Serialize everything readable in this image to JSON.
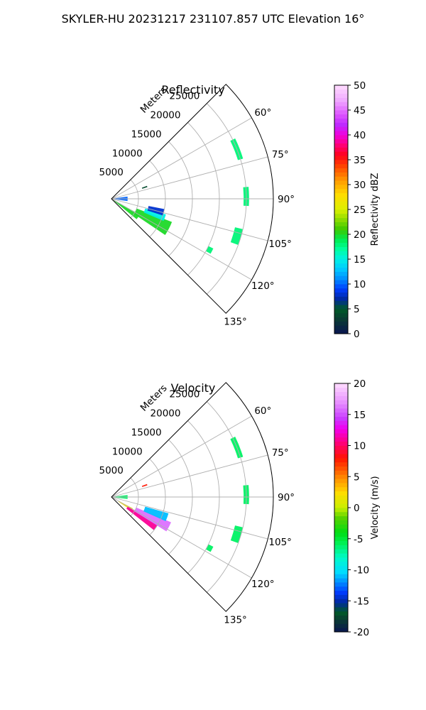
{
  "figure_title": "SKYLER-HU  20231217  231107.857 UTC Elevation 16°",
  "chart_data": [
    {
      "type": "heatmap",
      "title": "Reflectivity",
      "projection": "polar-sector",
      "theta_range_deg": [
        45,
        135
      ],
      "theta_ticks": [
        "60°",
        "75°",
        "90°",
        "105°",
        "120°",
        "135°"
      ],
      "r_range_m": [
        0,
        30000
      ],
      "r_ticks": [
        "5000",
        "10000",
        "15000",
        "20000",
        "25000"
      ],
      "r_axis_label": "Meters",
      "grid": true,
      "colorbar": {
        "label": "Reflectivity dBZ",
        "min": 0,
        "max": 50,
        "ticks": [
          "0",
          "5",
          "10",
          "15",
          "20",
          "25",
          "30",
          "35",
          "40",
          "45",
          "50"
        ]
      },
      "echoes": [
        {
          "az_from": 119,
          "az_to": 129,
          "r_from": 500,
          "r_to": 6000,
          "value": 20
        },
        {
          "az_from": 111,
          "az_to": 124,
          "r_from": 5000,
          "r_to": 12000,
          "value": 20
        },
        {
          "az_from": 106,
          "az_to": 113,
          "r_from": 6500,
          "r_to": 10500,
          "value": 15
        },
        {
          "az_from": 101,
          "az_to": 108,
          "r_from": 7000,
          "r_to": 10000,
          "value": 8
        },
        {
          "az_from": 82,
          "az_to": 98,
          "r_from": 500,
          "r_to": 3000,
          "value": 10
        },
        {
          "az_from": 70,
          "az_to": 72,
          "r_from": 6000,
          "r_to": 7000,
          "value": 4
        },
        {
          "az_from": 64,
          "az_to": 73,
          "r_from": 24500,
          "r_to": 25500,
          "value": 18
        },
        {
          "az_from": 85,
          "az_to": 93,
          "r_from": 24500,
          "r_to": 25500,
          "value": 18
        },
        {
          "az_from": 103,
          "az_to": 110,
          "r_from": 23500,
          "r_to": 25000,
          "value": 18
        },
        {
          "az_from": 116,
          "az_to": 119,
          "r_from": 20000,
          "r_to": 21000,
          "value": 18
        }
      ]
    },
    {
      "type": "heatmap",
      "title": "Velocity",
      "projection": "polar-sector",
      "theta_range_deg": [
        45,
        135
      ],
      "theta_ticks": [
        "60°",
        "75°",
        "90°",
        "105°",
        "120°",
        "135°"
      ],
      "r_range_m": [
        0,
        30000
      ],
      "r_ticks": [
        "5000",
        "10000",
        "15000",
        "20000",
        "25000"
      ],
      "r_axis_label": "Meters",
      "grid": true,
      "colorbar": {
        "label": "Velocity (m/s)",
        "min": -20,
        "max": 20,
        "ticks": [
          "-20",
          "-15",
          "-10",
          "-5",
          "0",
          "5",
          "10",
          "15",
          "20"
        ]
      },
      "echoes": [
        {
          "az_from": 118,
          "az_to": 124,
          "r_from": 1500,
          "r_to": 4500,
          "value": 2
        },
        {
          "az_from": 121,
          "az_to": 128,
          "r_from": 3500,
          "r_to": 10000,
          "value": 11
        },
        {
          "az_from": 113,
          "az_to": 122,
          "r_from": 5000,
          "r_to": 12000,
          "value": 16
        },
        {
          "az_from": 106,
          "az_to": 114,
          "r_from": 6500,
          "r_to": 11000,
          "value": -11
        },
        {
          "az_from": 83,
          "az_to": 97,
          "r_from": 500,
          "r_to": 3000,
          "value": -6
        },
        {
          "az_from": 70,
          "az_to": 72,
          "r_from": 6000,
          "r_to": 7000,
          "value": 8
        },
        {
          "az_from": 64,
          "az_to": 73,
          "r_from": 24500,
          "r_to": 25500,
          "value": -6
        },
        {
          "az_from": 85,
          "az_to": 93,
          "r_from": 24500,
          "r_to": 25500,
          "value": -6
        },
        {
          "az_from": 103,
          "az_to": 110,
          "r_from": 23500,
          "r_to": 25000,
          "value": -6
        },
        {
          "az_from": 116,
          "az_to": 119,
          "r_from": 20000,
          "r_to": 21000,
          "value": -6
        }
      ]
    }
  ]
}
